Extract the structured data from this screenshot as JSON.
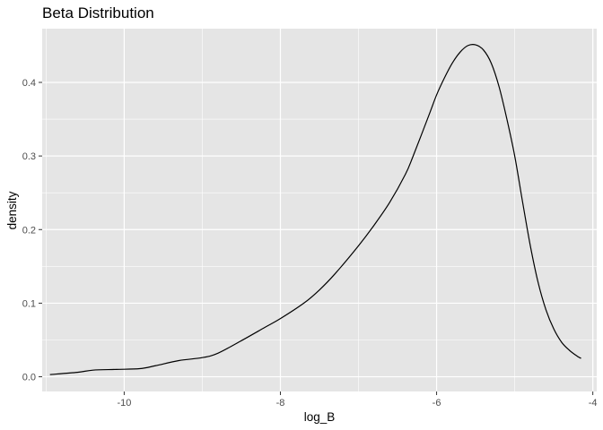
{
  "chart_data": {
    "type": "line",
    "title": "Beta Distribution",
    "xlabel": "log_B",
    "ylabel": "density",
    "xlim": [
      -11.05,
      -3.95
    ],
    "ylim": [
      -0.02,
      0.473
    ],
    "x_ticks": [
      -10,
      -8,
      -6,
      -4
    ],
    "x_tick_labels": [
      "-10",
      "-8",
      "-6",
      "-4"
    ],
    "y_ticks": [
      0.0,
      0.1,
      0.2,
      0.3,
      0.4
    ],
    "y_tick_labels": [
      "0.0",
      "0.1",
      "0.2",
      "0.3",
      "0.4"
    ],
    "grid": true,
    "colors": {
      "panel": "#e5e5e5",
      "grid_major": "#ffffff",
      "line": "#000000"
    },
    "series": [
      {
        "x": [
          -10.95,
          -10.6,
          -10.4,
          -10.1,
          -9.8,
          -9.6,
          -9.3,
          -9.0,
          -8.8,
          -8.5,
          -8.2,
          -8.0,
          -7.7,
          -7.5,
          -7.3,
          -7.0,
          -6.8,
          -6.6,
          -6.4,
          -6.3,
          -6.1,
          -6.0,
          -5.9,
          -5.8,
          -5.7,
          -5.6,
          -5.5,
          -5.4,
          -5.3,
          -5.2,
          -5.1,
          -5.0,
          -4.9,
          -4.8,
          -4.7,
          -4.6,
          -4.5,
          -4.4,
          -4.3,
          -4.2,
          -4.15
        ],
        "y": [
          0.003,
          0.006,
          0.009,
          0.01,
          0.011,
          0.015,
          0.022,
          0.026,
          0.032,
          0.049,
          0.067,
          0.079,
          0.1,
          0.118,
          0.14,
          0.178,
          0.206,
          0.237,
          0.275,
          0.3,
          0.355,
          0.383,
          0.406,
          0.426,
          0.441,
          0.45,
          0.451,
          0.444,
          0.426,
          0.394,
          0.35,
          0.3,
          0.238,
          0.178,
          0.128,
          0.091,
          0.065,
          0.047,
          0.036,
          0.028,
          0.025
        ]
      }
    ]
  }
}
